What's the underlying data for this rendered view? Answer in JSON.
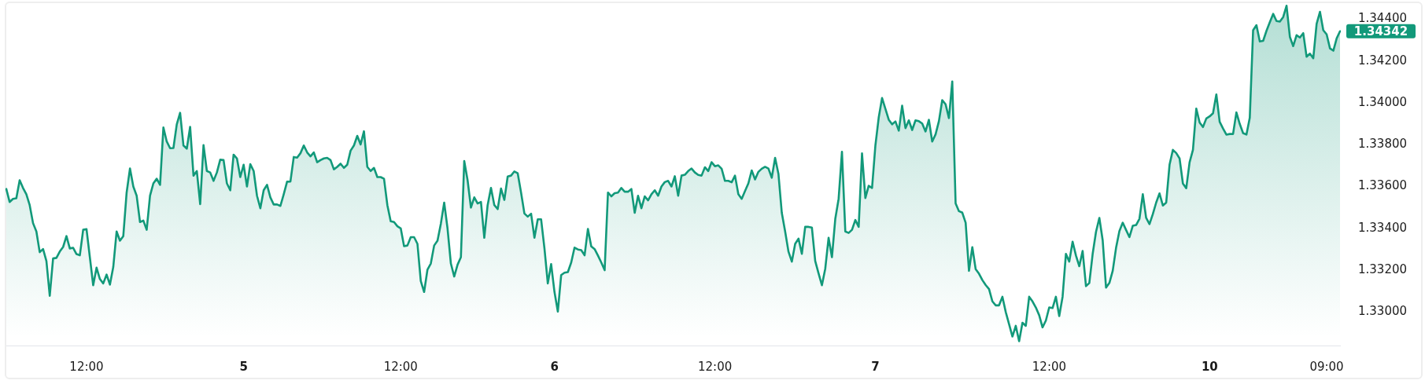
{
  "chart_data": {
    "type": "area",
    "color": "#12997a",
    "categories": [
      null,
      null,
      null,
      null,
      null,
      null,
      null,
      null,
      null,
      null,
      null,
      null,
      null,
      null,
      null,
      null,
      null,
      null,
      null,
      null,
      null,
      null,
      null,
      null,
      "12:00",
      null,
      null,
      null,
      null,
      null,
      null,
      null,
      null,
      null,
      null,
      null,
      null,
      null,
      null,
      null,
      null,
      null,
      null,
      null,
      null,
      null,
      null,
      null,
      null,
      null,
      null,
      null,
      null,
      null,
      null,
      null,
      null,
      null,
      null,
      null,
      null,
      null,
      null,
      null,
      null,
      null,
      null,
      null,
      null,
      null,
      null,
      "5",
      null,
      null,
      null,
      null,
      null,
      null,
      null,
      null,
      null,
      null,
      null,
      null,
      null,
      null,
      null,
      null,
      null,
      null,
      null,
      null,
      null,
      null,
      null,
      null,
      null,
      null,
      null,
      null,
      null,
      null,
      null,
      null,
      null,
      null,
      null,
      null,
      null,
      null,
      null,
      null,
      null,
      null,
      null,
      null,
      null,
      null,
      "12:00",
      null,
      null,
      null,
      null,
      null,
      null,
      null,
      null,
      null,
      null,
      null,
      null,
      null,
      null,
      null,
      null,
      null,
      null,
      null,
      null,
      null,
      null,
      null,
      null,
      null,
      null,
      null,
      null,
      null,
      null,
      null,
      null,
      null,
      null,
      null,
      null,
      null,
      null,
      null,
      null,
      null,
      null,
      null,
      null,
      null,
      "6",
      null,
      null,
      null,
      null,
      null,
      null,
      null,
      null,
      null,
      null,
      null,
      null,
      null,
      null,
      null,
      null,
      null,
      null,
      null,
      null,
      null,
      null,
      null,
      null,
      null,
      null,
      null,
      null,
      null,
      null,
      null,
      null,
      null,
      null,
      null,
      null,
      null,
      null,
      null,
      null,
      null,
      null,
      null,
      null,
      null,
      null,
      null,
      "12:00",
      null,
      null,
      null,
      null,
      null,
      null,
      null,
      null,
      null,
      null,
      null,
      null,
      null,
      null,
      null,
      null,
      null,
      null,
      null,
      null,
      null,
      null,
      null,
      null,
      null,
      null,
      null,
      null,
      null,
      null,
      null,
      null,
      null,
      null,
      null,
      null,
      null,
      null,
      null,
      null,
      null,
      null,
      null,
      null,
      null,
      null,
      null,
      "7",
      null,
      null,
      null,
      null,
      null,
      null,
      null,
      null,
      null,
      null,
      null,
      null,
      null,
      null,
      null,
      null,
      null,
      null,
      null,
      null,
      null,
      null,
      null,
      null,
      null,
      null,
      null,
      null,
      null,
      null,
      null,
      null,
      null,
      null,
      null,
      null,
      null,
      null,
      null,
      null,
      null,
      null,
      null,
      null,
      null,
      null,
      null,
      null,
      null,
      null,
      null,
      "12:00",
      null,
      null,
      null,
      null,
      null,
      null,
      null,
      null,
      null,
      null,
      null,
      null,
      null,
      null,
      null,
      null,
      null,
      null,
      null,
      null,
      null,
      null,
      null,
      null,
      null,
      null,
      null,
      null,
      null,
      null,
      null,
      null,
      null,
      null,
      null,
      null,
      null,
      null,
      null,
      null,
      null,
      null,
      null,
      null,
      null,
      null,
      null,
      "10",
      null,
      null,
      null,
      null,
      null,
      null,
      null,
      null,
      null,
      null,
      null,
      null,
      null,
      null,
      null,
      null,
      null,
      null,
      null,
      null,
      null,
      null,
      null,
      null,
      null,
      null,
      null,
      null,
      null,
      null,
      null,
      null,
      null,
      null,
      "09:00",
      null,
      null,
      null,
      null
    ],
    "values": [
      1.33588,
      1.33526,
      1.33541,
      1.33544,
      1.3363,
      1.33593,
      1.33563,
      1.33511,
      1.33425,
      1.33385,
      1.33286,
      1.33301,
      1.33244,
      1.33078,
      1.33256,
      1.33259,
      1.33289,
      1.33311,
      1.33363,
      1.33304,
      1.33307,
      1.33277,
      1.33271,
      1.33393,
      1.33396,
      1.33262,
      1.33128,
      1.33212,
      1.33158,
      1.33137,
      1.33179,
      1.33131,
      1.33215,
      1.33385,
      1.33341,
      1.33363,
      1.33571,
      1.33686,
      1.336,
      1.33556,
      1.3343,
      1.33437,
      1.33393,
      1.33556,
      1.33615,
      1.33637,
      1.33608,
      1.33882,
      1.33815,
      1.33783,
      1.33784,
      1.33897,
      1.33952,
      1.33796,
      1.33781,
      1.33885,
      1.33652,
      1.33674,
      1.33516,
      1.33798,
      1.33674,
      1.33667,
      1.33627,
      1.33667,
      1.33728,
      1.33726,
      1.33615,
      1.33582,
      1.33752,
      1.33734,
      1.33645,
      1.33704,
      1.336,
      1.33707,
      1.33674,
      1.33556,
      1.33496,
      1.33582,
      1.33608,
      1.33548,
      1.33514,
      1.33514,
      1.33507,
      1.33563,
      1.33623,
      1.33624,
      1.33741,
      1.33738,
      1.33759,
      1.33796,
      1.33763,
      1.33744,
      1.33763,
      1.33716,
      1.33726,
      1.33734,
      1.33737,
      1.33726,
      1.33682,
      1.33694,
      1.33709,
      1.33689,
      1.33704,
      1.33771,
      1.33796,
      1.33842,
      1.33801,
      1.33864,
      1.33694,
      1.33674,
      1.33689,
      1.33645,
      1.33645,
      1.33637,
      1.33511,
      1.33434,
      1.3343,
      1.3341,
      1.334,
      1.33315,
      1.33318,
      1.33358,
      1.33358,
      1.33326,
      1.33148,
      1.33096,
      1.33203,
      1.33232,
      1.33318,
      1.33341,
      1.33422,
      1.33523,
      1.334,
      1.33232,
      1.3317,
      1.33226,
      1.33262,
      1.33722,
      1.3363,
      1.33499,
      1.33548,
      1.33519,
      1.33526,
      1.33355,
      1.33511,
      1.33593,
      1.33511,
      1.33492,
      1.3359,
      1.33536,
      1.33648,
      1.33652,
      1.33672,
      1.33663,
      1.33571,
      1.33471,
      1.33456,
      1.3347,
      1.33355,
      1.33443,
      1.33443,
      1.33304,
      1.33137,
      1.33229,
      1.33096,
      1.33002,
      1.33177,
      1.33188,
      1.33191,
      1.33237,
      1.33308,
      1.33299,
      1.33296,
      1.33271,
      1.33397,
      1.33314,
      1.33301,
      1.3327,
      1.33237,
      1.332,
      1.33571,
      1.33553,
      1.33568,
      1.33571,
      1.33593,
      1.33575,
      1.33575,
      1.33588,
      1.33474,
      1.33556,
      1.33496,
      1.33553,
      1.33534,
      1.33563,
      1.33582,
      1.33556,
      1.336,
      1.33621,
      1.33627,
      1.336,
      1.33649,
      1.33556,
      1.33652,
      1.33656,
      1.33674,
      1.33686,
      1.33667,
      1.33655,
      1.33652,
      1.33692,
      1.33674,
      1.33716,
      1.33697,
      1.33701,
      1.33685,
      1.33627,
      1.33627,
      1.3362,
      1.33652,
      1.33563,
      1.33541,
      1.33578,
      1.33615,
      1.33677,
      1.33634,
      1.3367,
      1.33685,
      1.33694,
      1.33686,
      1.33642,
      1.33737,
      1.3366,
      1.33474,
      1.33385,
      1.33289,
      1.33241,
      1.33326,
      1.33351,
      1.33278,
      1.33407,
      1.33407,
      1.33404,
      1.33244,
      1.33185,
      1.33128,
      1.33207,
      1.33355,
      1.33262,
      1.33445,
      1.33541,
      1.33766,
      1.33385,
      1.33378,
      1.33393,
      1.3344,
      1.33407,
      1.33758,
      1.33545,
      1.33603,
      1.33593,
      1.33796,
      1.3393,
      1.34023,
      1.33971,
      1.33919,
      1.33897,
      1.33911,
      1.33867,
      1.33986,
      1.33879,
      1.33916,
      1.3387,
      1.33916,
      1.33912,
      1.33901,
      1.33863,
      1.33919,
      1.33815,
      1.33849,
      1.33912,
      1.34013,
      1.33993,
      1.33927,
      1.34102,
      1.33519,
      1.33482,
      1.33475,
      1.33427,
      1.33197,
      1.3331,
      1.33205,
      1.33183,
      1.33153,
      1.33129,
      1.3311,
      1.33051,
      1.33032,
      1.33032,
      1.33073,
      1.33,
      1.32942,
      1.32883,
      1.32934,
      1.32861,
      1.32949,
      1.32934,
      1.33073,
      1.33051,
      1.33022,
      1.32985,
      1.32927,
      1.32959,
      1.33022,
      1.33019,
      1.33073,
      1.32981,
      1.33073,
      1.33278,
      1.33241,
      1.33336,
      1.3327,
      1.33219,
      1.33292,
      1.33124,
      1.33139,
      1.33278,
      1.33383,
      1.3345,
      1.33343,
      1.33117,
      1.33139,
      1.33197,
      1.33307,
      1.33387,
      1.33427,
      1.33392,
      1.33358,
      1.33412,
      1.33416,
      1.33446,
      1.33563,
      1.3345,
      1.3342,
      1.33468,
      1.33523,
      1.33567,
      1.33509,
      1.33523,
      1.33704,
      1.33775,
      1.3376,
      1.33734,
      1.33614,
      1.33592,
      1.33716,
      1.33775,
      1.33972,
      1.33906,
      1.33884,
      1.33925,
      1.33935,
      1.3395,
      1.3404,
      1.33909,
      1.33877,
      1.33848,
      1.33851,
      1.33851,
      1.33954,
      1.33899,
      1.33855,
      1.33848,
      1.33928,
      1.34347,
      1.34371,
      1.34293,
      1.34296,
      1.34344,
      1.34385,
      1.34425,
      1.34391,
      1.34388,
      1.3441,
      1.34464,
      1.34315,
      1.34271,
      1.34323,
      1.34312,
      1.34333,
      1.3422,
      1.34235,
      1.34213,
      1.34377,
      1.34435,
      1.34347,
      1.34327,
      1.3426,
      1.34249,
      1.34308,
      1.34342
    ],
    "ylim": [
      1.3284,
      1.3448
    ],
    "yticks": [
      {
        "value": 1.33,
        "label": "1.33000"
      },
      {
        "value": 1.332,
        "label": "1.33200"
      },
      {
        "value": 1.334,
        "label": "1.33400"
      },
      {
        "value": 1.336,
        "label": "1.33600"
      },
      {
        "value": 1.338,
        "label": "1.33800"
      },
      {
        "value": 1.34,
        "label": "1.34000"
      },
      {
        "value": 1.342,
        "label": "1.34200"
      },
      {
        "value": 1.344,
        "label": "1.34400"
      }
    ],
    "annotations": [
      "1.34342"
    ]
  }
}
